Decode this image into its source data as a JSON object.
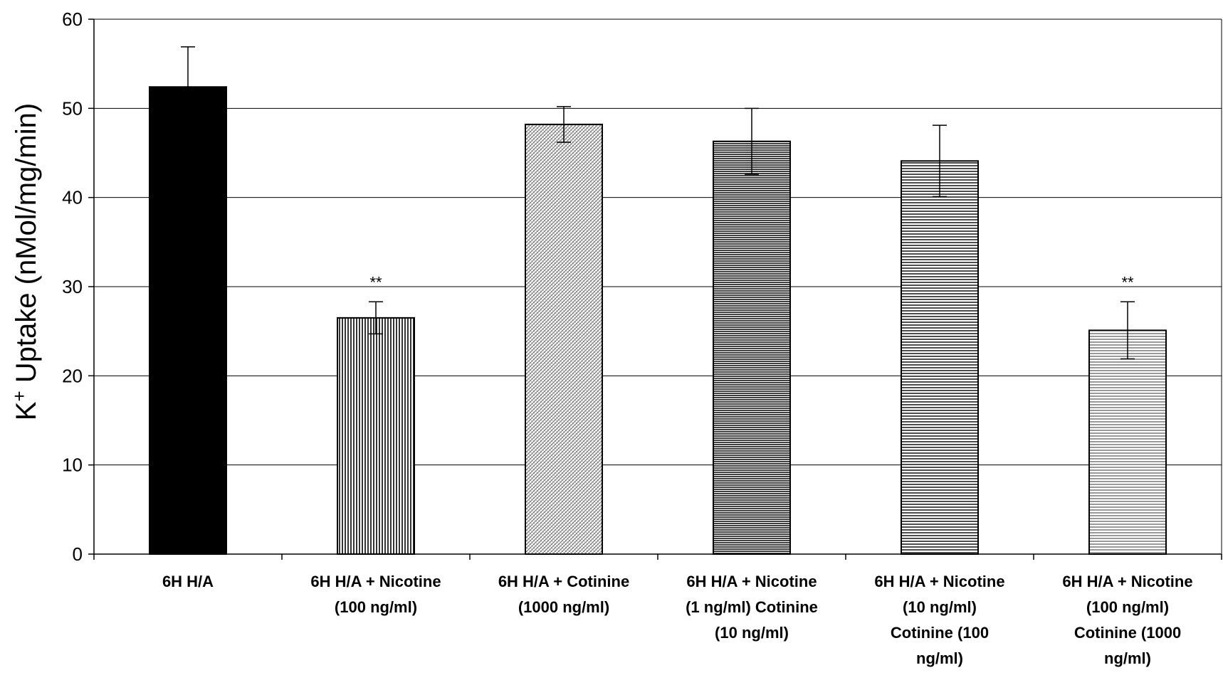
{
  "chart_data": {
    "type": "bar",
    "title": "",
    "xlabel": "",
    "ylabel": {
      "main": "K",
      "superscript": "+",
      "rest": " Uptake (nMol/mg/min)"
    },
    "ylim": [
      0,
      60
    ],
    "yticks": [
      0,
      10,
      20,
      30,
      40,
      50,
      60
    ],
    "grid": true,
    "legend": "none",
    "categories": [
      [
        "6H H/A"
      ],
      [
        "6H H/A + Nicotine",
        "(100 ng/ml)"
      ],
      [
        "6H H/A + Cotinine",
        "(1000 ng/ml)"
      ],
      [
        "6H H/A + Nicotine",
        "(1 ng/ml) Cotinine",
        "(10 ng/ml)"
      ],
      [
        "6H H/A + Nicotine",
        "(10 ng/ml)",
        "Cotinine (100",
        "ng/ml)"
      ],
      [
        "6H H/A + Nicotine",
        "(100 ng/ml)",
        "Cotinine (1000",
        "ng/ml)"
      ]
    ],
    "values": [
      52.4,
      26.5,
      48.2,
      46.3,
      44.1,
      25.1
    ],
    "errors": [
      4.5,
      1.8,
      2.0,
      3.7,
      4.0,
      3.2
    ],
    "fill_patterns": [
      "solid-black",
      "vertical-lines",
      "crosshatch-fine",
      "horizontal-lines-dense",
      "horizontal-lines",
      "horizontal-lines-light"
    ],
    "annotations": [
      "",
      "**",
      "",
      "",
      "",
      "**"
    ]
  }
}
